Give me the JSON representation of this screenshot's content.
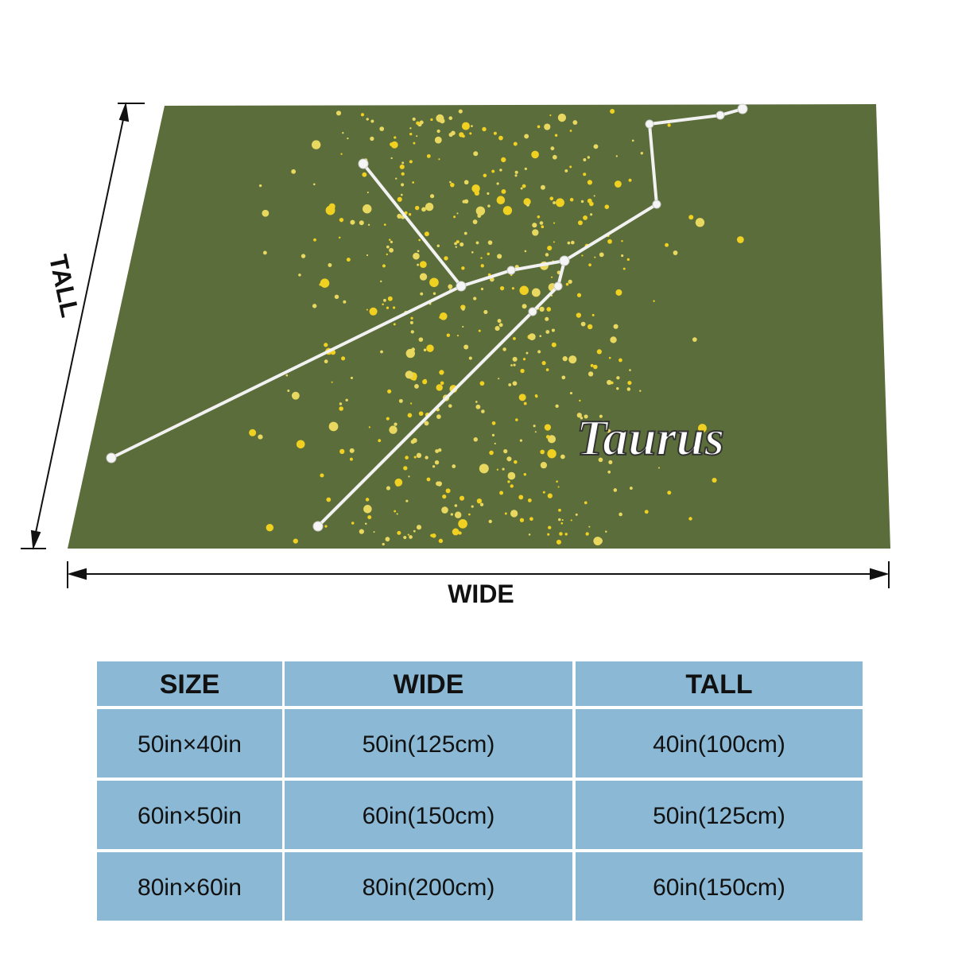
{
  "product": {
    "label": "Taurus"
  },
  "dimensions": {
    "tall": "TALL",
    "wide": "WIDE"
  },
  "table": {
    "header": [
      "SIZE",
      "WIDE",
      "TALL"
    ],
    "rows": [
      [
        "50in×40in",
        "50in(125cm)",
        "40in(100cm)"
      ],
      [
        "60in×50in",
        "60in(150cm)",
        "50in(125cm)"
      ],
      [
        "80in×60in",
        "80in(200cm)",
        "60in(150cm)"
      ]
    ]
  }
}
